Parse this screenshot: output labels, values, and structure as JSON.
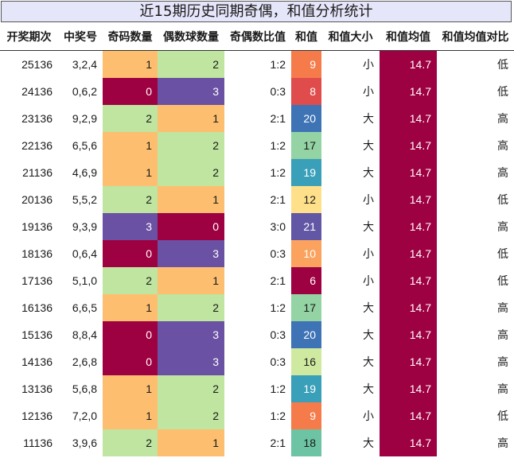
{
  "title": "近15期历史同期奇偶，和值分析统计",
  "chart_data": {
    "type": "table",
    "columns": [
      "开奖期次",
      "中奖号",
      "奇码数量",
      "偶数球数量",
      "奇偶数比值",
      "和值",
      "和值大小",
      "和值均值",
      "和值均值对比"
    ],
    "rows": [
      [
        "25136",
        "3,2,4",
        1,
        2,
        "1:2",
        9,
        "小",
        "14.7",
        "低"
      ],
      [
        "24136",
        "0,6,2",
        0,
        3,
        "0:3",
        8,
        "小",
        "14.7",
        "低"
      ],
      [
        "23136",
        "9,2,9",
        2,
        1,
        "2:1",
        20,
        "大",
        "14.7",
        "高"
      ],
      [
        "22136",
        "6,5,6",
        1,
        2,
        "1:2",
        17,
        "大",
        "14.7",
        "高"
      ],
      [
        "21136",
        "4,6,9",
        1,
        2,
        "1:2",
        19,
        "大",
        "14.7",
        "高"
      ],
      [
        "20136",
        "5,5,2",
        2,
        1,
        "2:1",
        12,
        "小",
        "14.7",
        "低"
      ],
      [
        "19136",
        "9,3,9",
        3,
        0,
        "3:0",
        21,
        "大",
        "14.7",
        "高"
      ],
      [
        "18136",
        "0,6,4",
        0,
        3,
        "0:3",
        10,
        "小",
        "14.7",
        "低"
      ],
      [
        "17136",
        "5,1,0",
        2,
        1,
        "2:1",
        6,
        "小",
        "14.7",
        "低"
      ],
      [
        "16136",
        "6,6,5",
        1,
        2,
        "1:2",
        17,
        "大",
        "14.7",
        "高"
      ],
      [
        "15136",
        "8,8,4",
        0,
        3,
        "0:3",
        20,
        "大",
        "14.7",
        "高"
      ],
      [
        "14136",
        "2,6,8",
        0,
        3,
        "0:3",
        16,
        "大",
        "14.7",
        "高"
      ],
      [
        "13136",
        "5,6,8",
        1,
        2,
        "1:2",
        19,
        "大",
        "14.7",
        "高"
      ],
      [
        "12136",
        "7,2,0",
        1,
        2,
        "1:2",
        9,
        "小",
        "14.7",
        "低"
      ],
      [
        "11136",
        "3,9,6",
        2,
        1,
        "2:1",
        18,
        "大",
        "14.7",
        "高"
      ]
    ],
    "count_colors": {
      "0": "#9e0142",
      "1": "#fdbf6f",
      "2": "#bfe5a0",
      "3": "#6a51a3"
    },
    "sum_colors": {
      "6": "#9e0142",
      "8": "#e04c4c",
      "9": "#f67b4a",
      "10": "#fba35e",
      "12": "#fee08b",
      "16": "#cfeaa0",
      "17": "#93d3a4",
      "18": "#6cc4a4",
      "19": "#3a9fb8",
      "20": "#3e73b5",
      "21": "#6257a5"
    },
    "mean_color": "#9e0142"
  }
}
